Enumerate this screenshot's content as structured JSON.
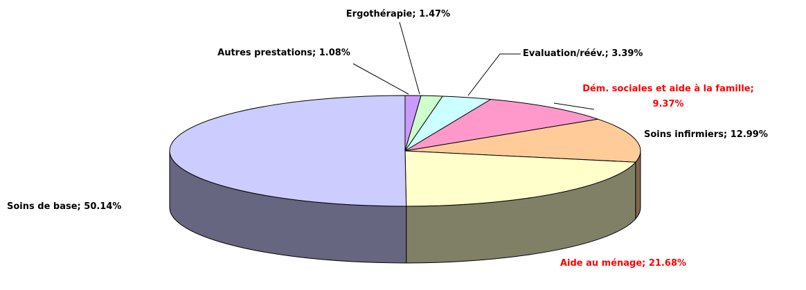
{
  "chart_data": {
    "type": "pie3d",
    "categories": [
      "Autres prestations;",
      "Ergothérapie;",
      "Evaluation/réév.;",
      "Dém. sociales et aide à la famille;",
      "Soins infirmiers;",
      "Aide au ménage;",
      "Soins de base;"
    ],
    "values": [
      1.08,
      1.47,
      3.39,
      9.37,
      12.99,
      21.68,
      50.14
    ],
    "value_labels": [
      "1.08%",
      "1.47%",
      "3.39%",
      "9.37%",
      "12.99%",
      "21.68%",
      "50.14%"
    ],
    "colors": [
      "#cc99ff",
      "#ccffcc",
      "#ccffff",
      "#ff99cc",
      "#ffcc99",
      "#ffffcc",
      "#ccccff"
    ],
    "label_colors": [
      "#000000",
      "#000000",
      "#000000",
      "#ff0000",
      "#000000",
      "#ff0000",
      "#000000"
    ]
  }
}
